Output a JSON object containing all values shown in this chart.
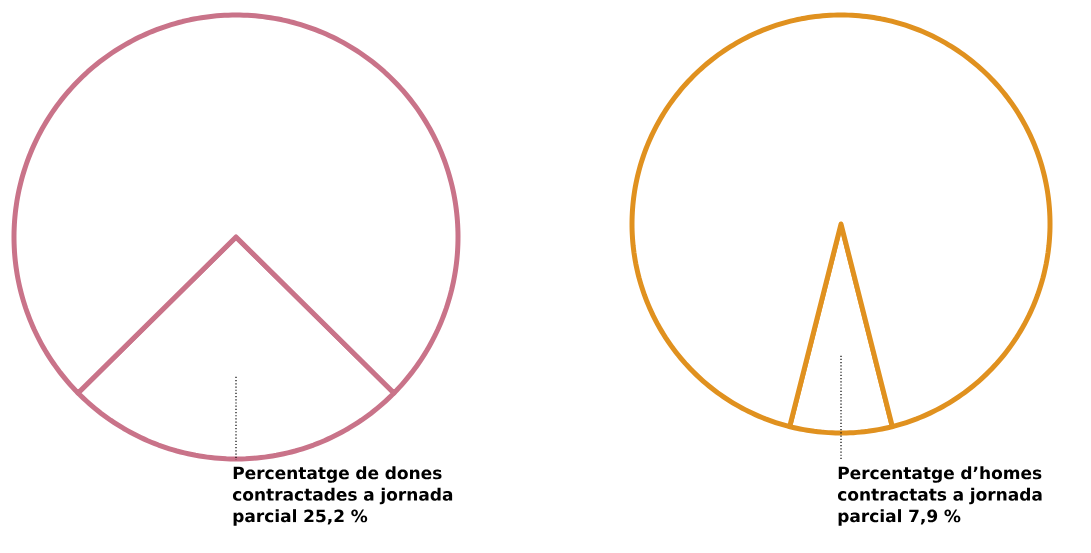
{
  "chart_data": [
    {
      "type": "pie",
      "categories": [
        "Percentatge de dones contractades a jornada parcial",
        null
      ],
      "values": [
        25.2,
        74.8
      ],
      "value_labels": [
        "25,2 %",
        null
      ],
      "colors": [
        "#c97389",
        "#c97389"
      ]
    },
    {
      "type": "pie",
      "categories": [
        "Percentatge d’homes contractats a jornada parcial",
        null
      ],
      "values": [
        7.9,
        92.1
      ],
      "value_labels": [
        "7,9 %",
        null
      ],
      "colors": [
        "#e0911f",
        "#e0911f"
      ]
    }
  ]
}
